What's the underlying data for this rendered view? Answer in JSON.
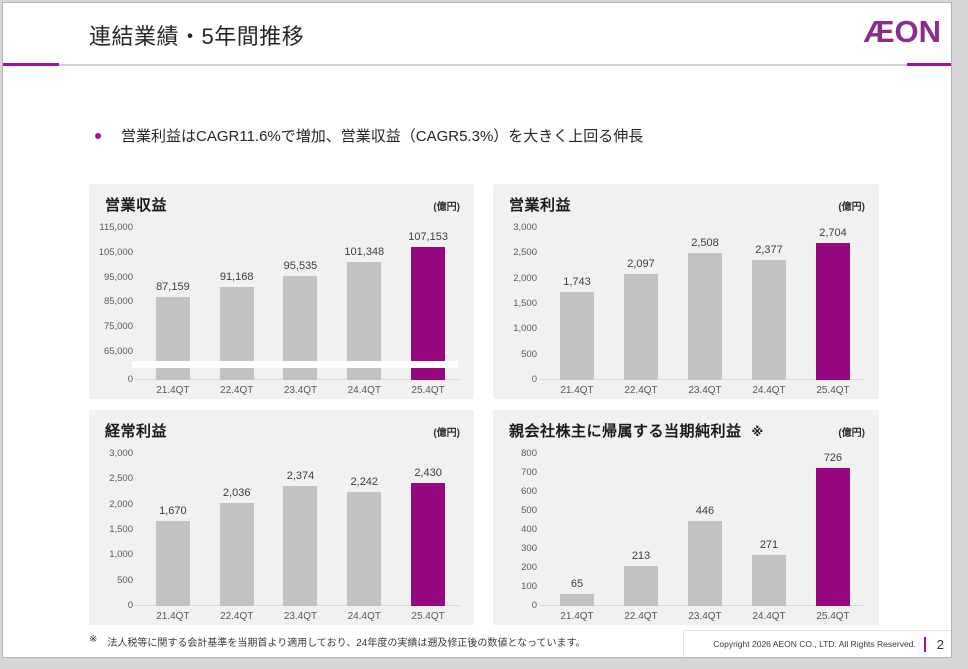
{
  "slide": {
    "title": "連結業績・5年間推移",
    "logo_text": "ÆON",
    "bullet": "営業利益はCAGR11.6%で増加、営業収益（CAGR5.3%）を大きく上回る伸長",
    "footnote_marker": "※",
    "footnote": "法人税等に関する会計基準を当期首より適用しており、24年度の実績は遡及修正後の数値となっています。",
    "copyright": "Copyright 2026 AEON CO., LTD. All Rights Reserved.",
    "page_number": "2"
  },
  "colors": {
    "accent_bar": "#97077f",
    "accent_line": "#a60d9e",
    "logo": "#8d2c88",
    "bar_gray": "#c2c2c2",
    "panel_bg": "#f1f1f0"
  },
  "chart_data": [
    {
      "type": "bar",
      "title": "営業収益",
      "title_note": "",
      "unit": "(億円)",
      "categories": [
        "21.4QT",
        "22.4QT",
        "23.4QT",
        "24.4QT",
        "25.4QT"
      ],
      "values": [
        87159,
        91168,
        95535,
        101348,
        107153
      ],
      "value_labels": [
        "87,159",
        "91,168",
        "95,535",
        "101,348",
        "107,153"
      ],
      "highlight_index": 4,
      "ylim": [
        0,
        115000
      ],
      "y_ticks": [
        0,
        65000,
        75000,
        85000,
        95000,
        105000,
        115000
      ],
      "y_tick_labels": [
        "0",
        "65,000",
        "75,000",
        "85,000",
        "95,000",
        "105,000",
        "115,000"
      ],
      "axis_break": {
        "enabled": true,
        "from": 65000
      },
      "grid": false,
      "legend": false
    },
    {
      "type": "bar",
      "title": "営業利益",
      "title_note": "",
      "unit": "(億円)",
      "categories": [
        "21.4QT",
        "22.4QT",
        "23.4QT",
        "24.4QT",
        "25.4QT"
      ],
      "values": [
        1743,
        2097,
        2508,
        2377,
        2704
      ],
      "value_labels": [
        "1,743",
        "2,097",
        "2,508",
        "2,377",
        "2,704"
      ],
      "highlight_index": 4,
      "ylim": [
        0,
        3000
      ],
      "y_ticks": [
        0,
        500,
        1000,
        1500,
        2000,
        2500,
        3000
      ],
      "y_tick_labels": [
        "0",
        "500",
        "1,000",
        "1,500",
        "2,000",
        "2,500",
        "3,000"
      ],
      "axis_break": {
        "enabled": false
      },
      "grid": false,
      "legend": false
    },
    {
      "type": "bar",
      "title": "経常利益",
      "title_note": "",
      "unit": "(億円)",
      "categories": [
        "21.4QT",
        "22.4QT",
        "23.4QT",
        "24.4QT",
        "25.4QT"
      ],
      "values": [
        1670,
        2036,
        2374,
        2242,
        2430
      ],
      "value_labels": [
        "1,670",
        "2,036",
        "2,374",
        "2,242",
        "2,430"
      ],
      "highlight_index": 4,
      "ylim": [
        0,
        3000
      ],
      "y_ticks": [
        0,
        500,
        1000,
        1500,
        2000,
        2500,
        3000
      ],
      "y_tick_labels": [
        "0",
        "500",
        "1,000",
        "1,500",
        "2,000",
        "2,500",
        "3,000"
      ],
      "axis_break": {
        "enabled": false
      },
      "grid": false,
      "legend": false
    },
    {
      "type": "bar",
      "title": "親会社株主に帰属する当期純利益",
      "title_note": "※",
      "unit": "(億円)",
      "categories": [
        "21.4QT",
        "22.4QT",
        "23.4QT",
        "24.4QT",
        "25.4QT"
      ],
      "values": [
        65,
        213,
        446,
        271,
        726
      ],
      "value_labels": [
        "65",
        "213",
        "446",
        "271",
        "726"
      ],
      "highlight_index": 4,
      "ylim": [
        0,
        800
      ],
      "y_ticks": [
        0,
        100,
        200,
        300,
        400,
        500,
        600,
        700,
        800
      ],
      "y_tick_labels": [
        "0",
        "100",
        "200",
        "300",
        "400",
        "500",
        "600",
        "700",
        "800"
      ],
      "axis_break": {
        "enabled": false
      },
      "grid": false,
      "legend": false
    }
  ]
}
